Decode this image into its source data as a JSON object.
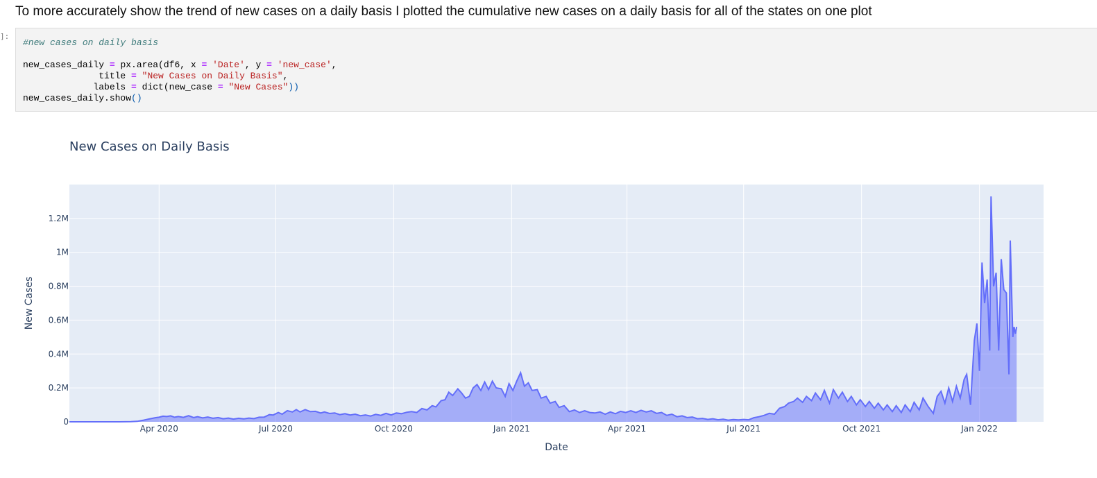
{
  "notebook": {
    "heading": "To more accurately show the trend of new cases on a daily basis I plotted the cumulative new cases on a daily basis for all of the states on one plot",
    "prompt": "]:",
    "code": {
      "comment": "#new cases on daily basis",
      "line2_a": "new_cases_daily ",
      "line2_op1": "=",
      "line2_b": " px.area(df6, x ",
      "line2_op2": "=",
      "line2_str1": "'Date'",
      "line2_c": ", y ",
      "line2_op3": "=",
      "line2_str2": "'new_case'",
      "line3_a": "              title ",
      "line3_op": "=",
      "line3_str": "\"New Cases on Daily Basis\"",
      "line4_a": "             labels ",
      "line4_op1": "=",
      "line4_b": " dict(new_case ",
      "line4_op2": "=",
      "line4_str": "\"New Cases\"",
      "line5": "new_cases_daily.show",
      "line5_paren": "()"
    }
  },
  "colors": {
    "plot_bg": "#e5ecf6",
    "grid": "#ffffff",
    "line": "#636efa",
    "fill": "rgba(99,110,250,0.5)",
    "text": "#2a3f5f"
  },
  "chart_data": {
    "type": "area",
    "title": "New Cases on Daily Basis",
    "xlabel": "Date",
    "ylabel": "New Cases",
    "x_range": [
      "2020-01-22",
      "2022-02-20"
    ],
    "ylim": [
      0,
      1400000
    ],
    "x_ticks": [
      {
        "date": "2020-04-01",
        "label": "Apr 2020"
      },
      {
        "date": "2020-07-01",
        "label": "Jul 2020"
      },
      {
        "date": "2020-10-01",
        "label": "Oct 2020"
      },
      {
        "date": "2021-01-01",
        "label": "Jan 2021"
      },
      {
        "date": "2021-04-01",
        "label": "Apr 2021"
      },
      {
        "date": "2021-07-01",
        "label": "Jul 2021"
      },
      {
        "date": "2021-10-01",
        "label": "Oct 2021"
      },
      {
        "date": "2022-01-01",
        "label": "Jan 2022"
      }
    ],
    "y_ticks": [
      {
        "value": 0,
        "label": "0"
      },
      {
        "value": 200000,
        "label": "0.2M"
      },
      {
        "value": 400000,
        "label": "0.4M"
      },
      {
        "value": 600000,
        "label": "0.6M"
      },
      {
        "value": 800000,
        "label": "0.8M"
      },
      {
        "value": 1000000,
        "label": "1M"
      },
      {
        "value": 1200000,
        "label": "1.2M"
      }
    ],
    "grid": true,
    "series": [
      {
        "points": [
          [
            "2020-01-22",
            0
          ],
          [
            "2020-02-15",
            0
          ],
          [
            "2020-03-01",
            100
          ],
          [
            "2020-03-10",
            800
          ],
          [
            "2020-03-15",
            3000
          ],
          [
            "2020-03-20",
            10000
          ],
          [
            "2020-03-25",
            18000
          ],
          [
            "2020-03-29",
            24000
          ],
          [
            "2020-04-01",
            27000
          ],
          [
            "2020-04-04",
            33000
          ],
          [
            "2020-04-07",
            31000
          ],
          [
            "2020-04-10",
            35000
          ],
          [
            "2020-04-13",
            27000
          ],
          [
            "2020-04-16",
            31000
          ],
          [
            "2020-04-20",
            26000
          ],
          [
            "2020-04-24",
            36000
          ],
          [
            "2020-04-28",
            25000
          ],
          [
            "2020-05-01",
            30000
          ],
          [
            "2020-05-05",
            23000
          ],
          [
            "2020-05-09",
            28000
          ],
          [
            "2020-05-13",
            21000
          ],
          [
            "2020-05-17",
            25000
          ],
          [
            "2020-05-21",
            18000
          ],
          [
            "2020-05-25",
            22000
          ],
          [
            "2020-05-29",
            16000
          ],
          [
            "2020-06-02",
            21000
          ],
          [
            "2020-06-06",
            17000
          ],
          [
            "2020-06-10",
            22000
          ],
          [
            "2020-06-14",
            19000
          ],
          [
            "2020-06-18",
            27000
          ],
          [
            "2020-06-22",
            28000
          ],
          [
            "2020-06-26",
            42000
          ],
          [
            "2020-06-29",
            40000
          ],
          [
            "2020-07-03",
            55000
          ],
          [
            "2020-07-06",
            45000
          ],
          [
            "2020-07-10",
            66000
          ],
          [
            "2020-07-14",
            58000
          ],
          [
            "2020-07-17",
            72000
          ],
          [
            "2020-07-20",
            58000
          ],
          [
            "2020-07-24",
            72000
          ],
          [
            "2020-07-28",
            60000
          ],
          [
            "2020-08-01",
            62000
          ],
          [
            "2020-08-05",
            52000
          ],
          [
            "2020-08-08",
            58000
          ],
          [
            "2020-08-12",
            49000
          ],
          [
            "2020-08-16",
            52000
          ],
          [
            "2020-08-20",
            42000
          ],
          [
            "2020-08-24",
            48000
          ],
          [
            "2020-08-28",
            40000
          ],
          [
            "2020-09-01",
            45000
          ],
          [
            "2020-09-05",
            36000
          ],
          [
            "2020-09-09",
            40000
          ],
          [
            "2020-09-13",
            34000
          ],
          [
            "2020-09-17",
            44000
          ],
          [
            "2020-09-21",
            38000
          ],
          [
            "2020-09-25",
            50000
          ],
          [
            "2020-09-29",
            40000
          ],
          [
            "2020-10-03",
            52000
          ],
          [
            "2020-10-07",
            48000
          ],
          [
            "2020-10-11",
            56000
          ],
          [
            "2020-10-15",
            60000
          ],
          [
            "2020-10-19",
            55000
          ],
          [
            "2020-10-23",
            78000
          ],
          [
            "2020-10-27",
            70000
          ],
          [
            "2020-10-31",
            95000
          ],
          [
            "2020-11-03",
            88000
          ],
          [
            "2020-11-07",
            125000
          ],
          [
            "2020-11-10",
            130000
          ],
          [
            "2020-11-13",
            175000
          ],
          [
            "2020-11-16",
            155000
          ],
          [
            "2020-11-20",
            195000
          ],
          [
            "2020-11-23",
            170000
          ],
          [
            "2020-11-26",
            140000
          ],
          [
            "2020-11-29",
            150000
          ],
          [
            "2020-12-02",
            200000
          ],
          [
            "2020-12-05",
            220000
          ],
          [
            "2020-12-08",
            185000
          ],
          [
            "2020-12-11",
            235000
          ],
          [
            "2020-12-14",
            190000
          ],
          [
            "2020-12-17",
            240000
          ],
          [
            "2020-12-20",
            200000
          ],
          [
            "2020-12-24",
            195000
          ],
          [
            "2020-12-27",
            150000
          ],
          [
            "2020-12-30",
            225000
          ],
          [
            "2021-01-02",
            185000
          ],
          [
            "2021-01-05",
            240000
          ],
          [
            "2021-01-08",
            290000
          ],
          [
            "2021-01-11",
            210000
          ],
          [
            "2021-01-14",
            230000
          ],
          [
            "2021-01-17",
            185000
          ],
          [
            "2021-01-21",
            190000
          ],
          [
            "2021-01-24",
            140000
          ],
          [
            "2021-01-28",
            150000
          ],
          [
            "2021-01-31",
            110000
          ],
          [
            "2021-02-04",
            120000
          ],
          [
            "2021-02-07",
            85000
          ],
          [
            "2021-02-11",
            95000
          ],
          [
            "2021-02-15",
            60000
          ],
          [
            "2021-02-19",
            70000
          ],
          [
            "2021-02-23",
            55000
          ],
          [
            "2021-02-27",
            65000
          ],
          [
            "2021-03-03",
            55000
          ],
          [
            "2021-03-07",
            52000
          ],
          [
            "2021-03-11",
            58000
          ],
          [
            "2021-03-15",
            45000
          ],
          [
            "2021-03-19",
            58000
          ],
          [
            "2021-03-23",
            48000
          ],
          [
            "2021-03-27",
            62000
          ],
          [
            "2021-03-31",
            55000
          ],
          [
            "2021-04-04",
            65000
          ],
          [
            "2021-04-08",
            55000
          ],
          [
            "2021-04-12",
            68000
          ],
          [
            "2021-04-16",
            58000
          ],
          [
            "2021-04-20",
            65000
          ],
          [
            "2021-04-24",
            50000
          ],
          [
            "2021-04-28",
            55000
          ],
          [
            "2021-05-02",
            38000
          ],
          [
            "2021-05-06",
            45000
          ],
          [
            "2021-05-10",
            30000
          ],
          [
            "2021-05-14",
            35000
          ],
          [
            "2021-05-18",
            25000
          ],
          [
            "2021-05-22",
            28000
          ],
          [
            "2021-05-26",
            18000
          ],
          [
            "2021-05-30",
            20000
          ],
          [
            "2021-06-03",
            14000
          ],
          [
            "2021-06-07",
            18000
          ],
          [
            "2021-06-11",
            12000
          ],
          [
            "2021-06-15",
            15000
          ],
          [
            "2021-06-19",
            10000
          ],
          [
            "2021-06-23",
            13000
          ],
          [
            "2021-06-27",
            11000
          ],
          [
            "2021-07-01",
            14000
          ],
          [
            "2021-07-05",
            12000
          ],
          [
            "2021-07-09",
            24000
          ],
          [
            "2021-07-13",
            30000
          ],
          [
            "2021-07-17",
            38000
          ],
          [
            "2021-07-21",
            50000
          ],
          [
            "2021-07-25",
            45000
          ],
          [
            "2021-07-29",
            80000
          ],
          [
            "2021-08-02",
            90000
          ],
          [
            "2021-08-05",
            110000
          ],
          [
            "2021-08-09",
            120000
          ],
          [
            "2021-08-12",
            140000
          ],
          [
            "2021-08-16",
            115000
          ],
          [
            "2021-08-19",
            150000
          ],
          [
            "2021-08-23",
            125000
          ],
          [
            "2021-08-26",
            170000
          ],
          [
            "2021-08-30",
            130000
          ],
          [
            "2021-09-02",
            185000
          ],
          [
            "2021-09-06",
            110000
          ],
          [
            "2021-09-09",
            190000
          ],
          [
            "2021-09-13",
            140000
          ],
          [
            "2021-09-16",
            175000
          ],
          [
            "2021-09-20",
            120000
          ],
          [
            "2021-09-23",
            150000
          ],
          [
            "2021-09-27",
            100000
          ],
          [
            "2021-09-30",
            130000
          ],
          [
            "2021-10-04",
            90000
          ],
          [
            "2021-10-07",
            120000
          ],
          [
            "2021-10-11",
            80000
          ],
          [
            "2021-10-14",
            110000
          ],
          [
            "2021-10-18",
            70000
          ],
          [
            "2021-10-21",
            100000
          ],
          [
            "2021-10-25",
            60000
          ],
          [
            "2021-10-28",
            95000
          ],
          [
            "2021-11-01",
            55000
          ],
          [
            "2021-11-04",
            100000
          ],
          [
            "2021-11-08",
            60000
          ],
          [
            "2021-11-11",
            115000
          ],
          [
            "2021-11-15",
            70000
          ],
          [
            "2021-11-18",
            140000
          ],
          [
            "2021-11-22",
            90000
          ],
          [
            "2021-11-26",
            50000
          ],
          [
            "2021-11-29",
            150000
          ],
          [
            "2021-12-02",
            180000
          ],
          [
            "2021-12-05",
            110000
          ],
          [
            "2021-12-08",
            200000
          ],
          [
            "2021-12-11",
            120000
          ],
          [
            "2021-12-14",
            210000
          ],
          [
            "2021-12-17",
            140000
          ],
          [
            "2021-12-20",
            250000
          ],
          [
            "2021-12-22",
            280000
          ],
          [
            "2021-12-25",
            100000
          ],
          [
            "2021-12-28",
            480000
          ],
          [
            "2021-12-30",
            580000
          ],
          [
            "2022-01-01",
            300000
          ],
          [
            "2022-01-03",
            940000
          ],
          [
            "2022-01-05",
            700000
          ],
          [
            "2022-01-07",
            840000
          ],
          [
            "2022-01-09",
            420000
          ],
          [
            "2022-01-10",
            1330000
          ],
          [
            "2022-01-12",
            800000
          ],
          [
            "2022-01-14",
            880000
          ],
          [
            "2022-01-16",
            420000
          ],
          [
            "2022-01-18",
            960000
          ],
          [
            "2022-01-20",
            780000
          ],
          [
            "2022-01-22",
            760000
          ],
          [
            "2022-01-24",
            280000
          ],
          [
            "2022-01-25",
            1070000
          ],
          [
            "2022-01-27",
            500000
          ],
          [
            "2022-01-28",
            560000
          ],
          [
            "2022-01-29",
            520000
          ],
          [
            "2022-01-30",
            560000
          ]
        ]
      }
    ]
  }
}
